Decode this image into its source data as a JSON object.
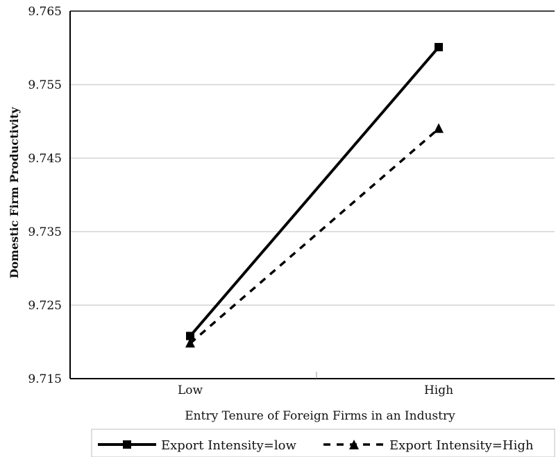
{
  "chart_data": {
    "type": "line",
    "xlabel": "Entry Tenure of Foreign Firms in an Industry",
    "ylabel": "Domestic Firm Productivity",
    "categories": [
      "Low",
      "High"
    ],
    "ylim": [
      9.715,
      9.765
    ],
    "yticks": [
      "9.715",
      "9.725",
      "9.735",
      "9.745",
      "9.755",
      "9.765"
    ],
    "grid": "horizontal",
    "legend_position": "bottom",
    "series": [
      {
        "name": "Export Intensity=low",
        "values": [
          9.7208,
          9.7601
        ],
        "marker": "square",
        "line": "solid",
        "color": "#000000"
      },
      {
        "name": "Export Intensity=High",
        "values": [
          9.7198,
          9.749
        ],
        "marker": "triangle",
        "line": "dashed",
        "color": "#000000"
      }
    ]
  }
}
